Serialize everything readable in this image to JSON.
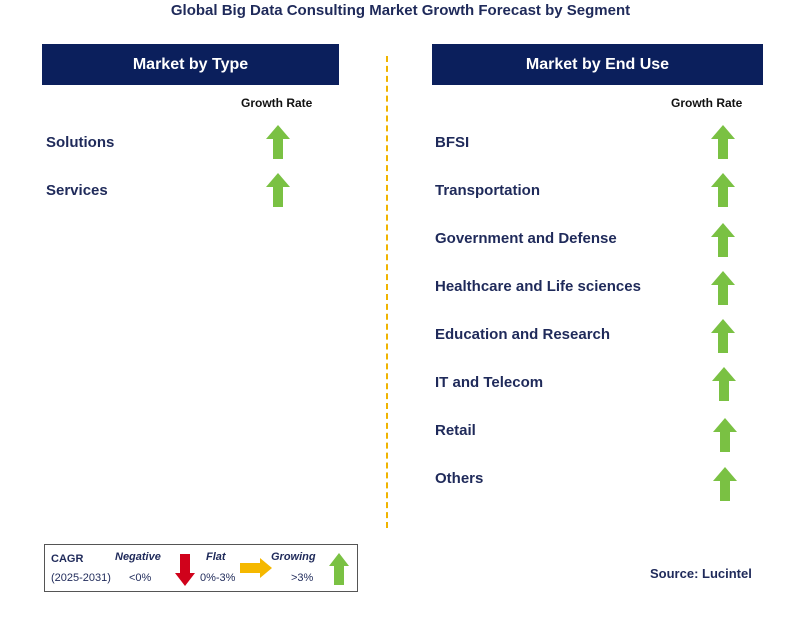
{
  "title": "Global Big Data Consulting Market Growth Forecast by Segment",
  "left_panel": {
    "header": "Market by Type",
    "growth_rate_label": "Growth Rate",
    "items": [
      {
        "label": "Solutions",
        "trend": "growing"
      },
      {
        "label": "Services",
        "trend": "growing"
      }
    ]
  },
  "right_panel": {
    "header": "Market by End Use",
    "growth_rate_label": "Growth Rate",
    "items": [
      {
        "label": "BFSI",
        "trend": "growing"
      },
      {
        "label": "Transportation",
        "trend": "growing"
      },
      {
        "label": "Government and Defense",
        "trend": "growing"
      },
      {
        "label": "Healthcare and Life sciences",
        "trend": "growing"
      },
      {
        "label": "Education and Research",
        "trend": "growing"
      },
      {
        "label": "IT and Telecom",
        "trend": "growing"
      },
      {
        "label": "Retail",
        "trend": "growing"
      },
      {
        "label": "Others",
        "trend": "growing"
      }
    ]
  },
  "legend": {
    "cagr_label": "CAGR",
    "period": "(2025-2031)",
    "negative_label": "Negative",
    "negative_range": "<0%",
    "flat_label": "Flat",
    "flat_range": "0%-3%",
    "growing_label": "Growing",
    "growing_range": ">3%"
  },
  "source": "Source: Lucintel",
  "colors": {
    "header_bg": "#0b1f5c",
    "growing": "#7ac143",
    "negative": "#d0021b",
    "flat": "#f5b800",
    "divider": "#f0b400"
  }
}
